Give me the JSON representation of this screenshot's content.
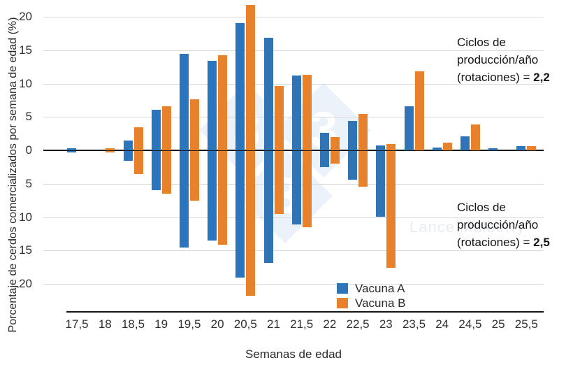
{
  "watermark": {
    "logo_digit": "3",
    "credit": "Lance Mulberry"
  },
  "annotations": {
    "top": {
      "line1": "Ciclos de",
      "line2": "producción/año",
      "line3_label": "(rotaciones) = ",
      "line3_value": "2,2"
    },
    "bottom": {
      "line1": "Ciclos de",
      "line2": "producción/año",
      "line3_label": "(rotaciones) = ",
      "line3_value": "2,5"
    }
  },
  "legend": {
    "items": [
      {
        "label": "Vacuna A",
        "color": "#2d74b8"
      },
      {
        "label": "Vacuna B",
        "color": "#e8812c"
      }
    ]
  },
  "chart_data": {
    "type": "bar",
    "subtype": "diverging-mirrored-vertical",
    "title": "",
    "xlabel": "Semanas de edad",
    "ylabel": "Porcentaje de cerdos comercializados por semana de edad (%)",
    "grid": "horizontal-on",
    "legend_position": "bottom-center",
    "categories": [
      "17,5",
      "18",
      "18,5",
      "19",
      "19,5",
      "20",
      "20,5",
      "21",
      "21,5",
      "22",
      "22,5",
      "23",
      "23,5",
      "24",
      "24,5",
      "25",
      "25,5"
    ],
    "y_axis": {
      "top_ticks": [
        20,
        15,
        10,
        5,
        0
      ],
      "bottom_ticks": [
        5,
        10,
        15,
        20
      ],
      "ylim_top": 22.2,
      "ylim_bottom": 22.2,
      "units": "%"
    },
    "colors": {
      "vacuna_a": "#2d74b8",
      "vacuna_b": "#e8812c"
    },
    "series": [
      {
        "name": "Vacuna A",
        "scenario": "rotaciones = 2,2",
        "direction": "up",
        "color": "#2d74b8",
        "values": [
          0.3,
          0,
          1.5,
          6.1,
          14.5,
          13.4,
          19.1,
          16.9,
          11.2,
          2.6,
          4.4,
          0.7,
          6.6,
          0.4,
          2.1,
          0.3,
          0.6
        ]
      },
      {
        "name": "Vacuna B",
        "scenario": "rotaciones = 2,2",
        "direction": "up",
        "color": "#e8812c",
        "values": [
          0,
          0.3,
          3.5,
          6.6,
          7.6,
          14.2,
          21.8,
          9.6,
          11.3,
          2.0,
          5.4,
          0.9,
          11.8,
          1.2,
          3.9,
          0,
          0.6
        ]
      },
      {
        "name": "Vacuna A",
        "scenario": "rotaciones = 2,5",
        "direction": "down",
        "color": "#2d74b8",
        "values": [
          0.2,
          0,
          1.5,
          5.9,
          14.4,
          13.4,
          19.0,
          16.8,
          11.0,
          2.4,
          4.3,
          9.8,
          0,
          0,
          0,
          0,
          0
        ]
      },
      {
        "name": "Vacuna B",
        "scenario": "rotaciones = 2,5",
        "direction": "down",
        "color": "#e8812c",
        "values": [
          0,
          0.2,
          3.5,
          6.4,
          7.4,
          14.0,
          21.7,
          9.4,
          11.4,
          1.9,
          5.3,
          17.5,
          0,
          0,
          0,
          0,
          0
        ]
      }
    ]
  }
}
